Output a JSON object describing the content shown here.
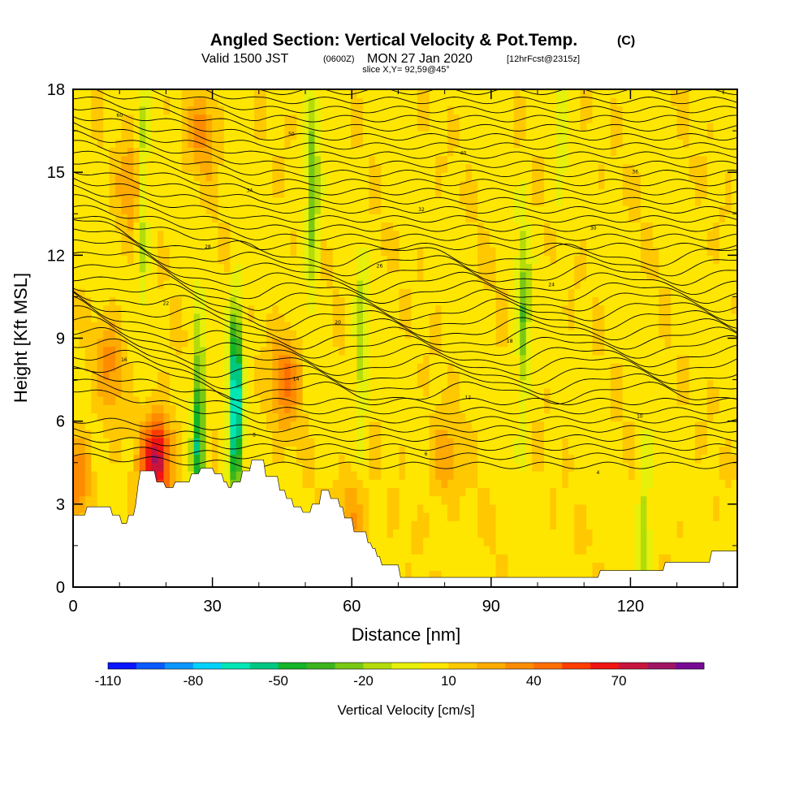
{
  "header": {
    "title": "Angled Section: Vertical Velocity & Pot.Temp.",
    "title_units": "(C)",
    "valid_a": "Valid 1500 JST",
    "valid_b": "(0600Z)",
    "valid_c": "MON 27 Jan 2020",
    "valid_d": "[12hrFcst@2315z]",
    "slice": "slice X,Y= 92,59@45°"
  },
  "chart_data": {
    "type": "heatmap",
    "xlabel": "Distance [nm]",
    "ylabel": "Height [Kft MSL]",
    "xlim": [
      0,
      143
    ],
    "ylim": [
      0,
      18
    ],
    "x_ticks": [
      0,
      30,
      60,
      90,
      120
    ],
    "y_ticks": [
      0,
      3,
      6,
      9,
      12,
      15,
      18
    ],
    "grid": false,
    "colorbar": {
      "title": "Vertical Velocity [cm/s]",
      "tick_labels": [
        -110,
        -80,
        -50,
        -20,
        10,
        40,
        70
      ],
      "bin_edges": [
        -110,
        -100,
        -90,
        -80,
        -70,
        -60,
        -50,
        -40,
        -30,
        -20,
        -10,
        0,
        10,
        20,
        30,
        40,
        50,
        60,
        70,
        80,
        90
      ],
      "colors": [
        "#0a14ff",
        "#0a5aff",
        "#0a96ff",
        "#00d2ff",
        "#00e6b4",
        "#00c882",
        "#14b428",
        "#3cb41e",
        "#78c814",
        "#b4dc0a",
        "#e6f00a",
        "#ffe600",
        "#ffc800",
        "#ffaa00",
        "#ff8c00",
        "#ff6e00",
        "#ff3c00",
        "#f01414",
        "#c8143c",
        "#a01464",
        "#780a96"
      ]
    },
    "terrain_profile": {
      "x": [
        0,
        2.5,
        3,
        8,
        8.5,
        10,
        10.5,
        11.5,
        12,
        13,
        13.5,
        14,
        14.5,
        17.5,
        18,
        19.5,
        20,
        21.5,
        22,
        25,
        25.5,
        27,
        27.5,
        30,
        30.5,
        32,
        32.5,
        33,
        33.5,
        34,
        34.5,
        36,
        36.5,
        38,
        38.5,
        41,
        41.5,
        44,
        44.5,
        45.5,
        46,
        47,
        47.5,
        49,
        49.5,
        51,
        51.5,
        53,
        53.5,
        55,
        55.5,
        57,
        57.5,
        58,
        58.5,
        60,
        60.5,
        63,
        63.5,
        64,
        64.5,
        65,
        65.5,
        66,
        66.5,
        70,
        70.5,
        113,
        113.5,
        127,
        127.5,
        137,
        137.5,
        143
      ],
      "y": [
        2.6,
        2.6,
        2.9,
        2.9,
        2.6,
        2.6,
        2.3,
        2.3,
        2.6,
        2.6,
        3.0,
        3.7,
        4.2,
        4.2,
        3.8,
        3.8,
        3.6,
        3.6,
        3.8,
        3.8,
        4.1,
        4.1,
        4.3,
        4.3,
        4.1,
        4.1,
        3.8,
        3.8,
        3.6,
        3.6,
        3.8,
        3.8,
        4.2,
        4.2,
        4.6,
        4.6,
        4.0,
        4.0,
        3.5,
        3.5,
        3.2,
        3.2,
        2.9,
        2.9,
        2.7,
        2.7,
        3.0,
        3.0,
        3.5,
        3.5,
        3.2,
        3.2,
        2.9,
        2.9,
        2.5,
        2.5,
        2.0,
        2.0,
        1.6,
        1.6,
        1.4,
        1.4,
        1.1,
        1.1,
        0.8,
        0.8,
        0.35,
        0.35,
        0.6,
        0.6,
        0.9,
        0.9,
        1.3,
        1.3
      ]
    },
    "updraft_cores": [
      {
        "x": 18,
        "y": 4.6,
        "w": 75
      },
      {
        "x": 8,
        "y": 8.0,
        "w": 25
      },
      {
        "x": 13,
        "y": 14.5,
        "w": 25
      },
      {
        "x": 46,
        "y": 7.5,
        "w": 35
      },
      {
        "x": 28,
        "y": 16.5,
        "w": 25
      },
      {
        "x": 60,
        "y": 2.5,
        "w": 25
      },
      {
        "x": 80,
        "y": 4.5,
        "w": 20
      },
      {
        "x": 1,
        "y": 4.0,
        "w": 30
      }
    ],
    "downdraft_bands": [
      {
        "x": 15,
        "y": 14.0,
        "w": -30
      },
      {
        "x": 27,
        "y": 5.5,
        "w": -60
      },
      {
        "x": 35,
        "y": 6.5,
        "w": -85
      },
      {
        "x": 51.5,
        "y": 14.0,
        "w": -35
      },
      {
        "x": 62,
        "y": 8.5,
        "w": -25
      },
      {
        "x": 97,
        "y": 9.7,
        "w": -35
      },
      {
        "x": 123,
        "y": 1.8,
        "w": -25
      },
      {
        "x": 105,
        "y": 16.0,
        "w": -15
      }
    ],
    "isentrope_labels": [
      "60",
      "50",
      "40",
      "36",
      "34",
      "32",
      "30",
      "28",
      "26",
      "24",
      "22",
      "20",
      "18",
      "16",
      "14",
      "12",
      "10",
      "8",
      "6",
      "4"
    ]
  }
}
